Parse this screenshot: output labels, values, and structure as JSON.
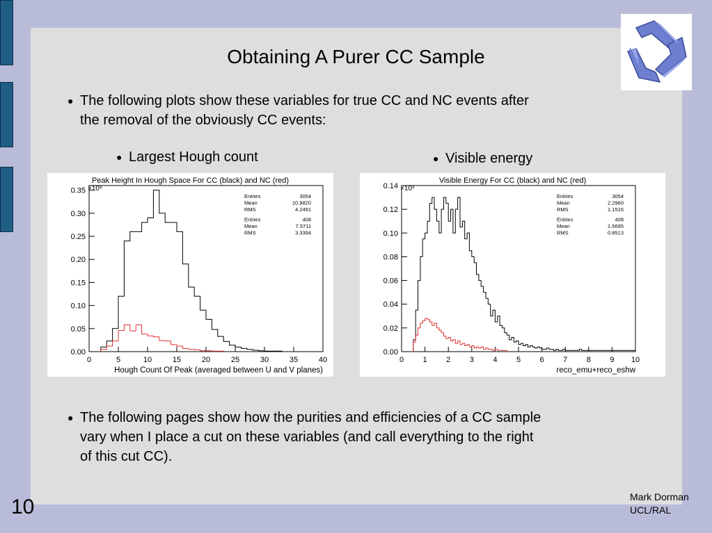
{
  "slide": {
    "title": "Obtaining A Purer CC Sample",
    "bullet1": [
      "The following plots show these variables for true CC and NC events after",
      "the removal of the obviously CC events:"
    ],
    "sub_left": "Largest Hough count",
    "sub_right": "Visible energy",
    "bullet2": [
      "The following pages show how the purities and efficiencies of a CC sample",
      "vary when I place a cut on these variables (and call everything to the right",
      "of this cut CC)."
    ],
    "slide_number": "10",
    "author": "Mark Dorman",
    "affiliation": "UCL/RAL"
  },
  "colors": {
    "cc": "#000000",
    "nc": "#e03030",
    "side_tab": "#1f5d85"
  },
  "logo_icon": "blue-triskelion-logo-icon",
  "chart_data": [
    {
      "type": "histogram",
      "title": "Peak Height In Hough Space For CC (black) and NC (red)",
      "xlabel": "Hough Count Of Peak (averaged between U and V planes)",
      "ylabel": "",
      "multiplier": "×10⁶",
      "xlim": [
        0,
        40
      ],
      "ylim": [
        0,
        0.36
      ],
      "xticks": [
        "0",
        "5",
        "10",
        "15",
        "20",
        "25",
        "30",
        "35",
        "40"
      ],
      "yticks": [
        "0.00",
        "0.05",
        "0.10",
        "0.15",
        "0.20",
        "0.25",
        "0.30",
        "0.35"
      ],
      "stats": [
        {
          "label": "Entries",
          "value": "3054"
        },
        {
          "label": "Mean",
          "value": "10.9820"
        },
        {
          "label": "RMS",
          "value": "4.2491"
        },
        {
          "label": "Entries",
          "value": "408"
        },
        {
          "label": "Mean",
          "value": "7.5711"
        },
        {
          "label": "RMS",
          "value": "3.3394"
        }
      ],
      "series": [
        {
          "name": "CC",
          "color": "#000000",
          "bin_width": 1,
          "x_start": 2,
          "values": [
            0.01,
            0.023,
            0.05,
            0.12,
            0.24,
            0.26,
            0.26,
            0.28,
            0.29,
            0.35,
            0.3,
            0.28,
            0.28,
            0.26,
            0.19,
            0.14,
            0.12,
            0.09,
            0.07,
            0.048,
            0.033,
            0.022,
            0.014,
            0.01,
            0.007,
            0.005,
            0.003,
            0.002,
            0.001,
            0.001,
            0.001
          ]
        },
        {
          "name": "NC",
          "color": "#e03030",
          "bin_width": 1,
          "x_start": 2,
          "values": [
            0.005,
            0.012,
            0.023,
            0.046,
            0.058,
            0.045,
            0.058,
            0.038,
            0.034,
            0.032,
            0.024,
            0.023,
            0.015,
            0.012,
            0.007,
            0.005,
            0.004,
            0.002,
            0.002,
            0.001,
            0.001
          ]
        }
      ]
    },
    {
      "type": "histogram",
      "title": "Visible Energy For CC (black) and NC (red)",
      "xlabel": "reco_emu+reco_eshw",
      "ylabel": "",
      "multiplier": "×10³",
      "xlim": [
        0,
        10
      ],
      "ylim": [
        0,
        0.14
      ],
      "xticks": [
        "0",
        "1",
        "2",
        "3",
        "4",
        "5",
        "6",
        "7",
        "8",
        "9",
        "10"
      ],
      "yticks": [
        "0.00",
        "0.02",
        "0.04",
        "0.06",
        "0.08",
        "0.10",
        "0.12",
        "0.14"
      ],
      "stats": [
        {
          "label": "Entries",
          "value": "3054"
        },
        {
          "label": "Mean",
          "value": "2.2960"
        },
        {
          "label": "RMS",
          "value": "1.1516"
        },
        {
          "label": "Entries",
          "value": "408"
        },
        {
          "label": "Mean",
          "value": "1.5695"
        },
        {
          "label": "RMS",
          "value": "0.8513"
        }
      ],
      "series": [
        {
          "name": "CC",
          "color": "#000000",
          "bin_width": 0.1,
          "x_start": 0.5,
          "values": [
            0.01,
            0.035,
            0.06,
            0.08,
            0.095,
            0.1,
            0.11,
            0.125,
            0.13,
            0.12,
            0.11,
            0.1,
            0.12,
            0.13,
            0.125,
            0.11,
            0.12,
            0.1,
            0.12,
            0.13,
            0.105,
            0.11,
            0.095,
            0.1,
            0.085,
            0.08,
            0.075,
            0.065,
            0.06,
            0.055,
            0.05,
            0.045,
            0.04,
            0.03,
            0.035,
            0.025,
            0.03,
            0.022,
            0.02,
            0.016,
            0.014,
            0.01,
            0.012,
            0.008,
            0.009,
            0.006,
            0.007,
            0.005,
            0.006,
            0.004,
            0.005,
            0.004,
            0.003,
            0.004,
            0.003,
            0.002,
            0.002,
            0.003,
            0.002,
            0.002,
            0.001,
            0.002,
            0.001,
            0.001,
            0.002,
            0.001,
            0.001,
            0.001,
            0.001,
            0.001,
            0.001,
            0.002,
            0.001,
            0.001,
            0.001,
            0.001,
            0.001,
            0.001,
            0.001,
            0.001,
            0.001,
            0.001,
            0.001,
            0.001,
            0.001,
            0.001,
            0.001,
            0.001,
            0.001,
            0.001,
            0.001,
            0.001,
            0.001,
            0.001,
            0.001
          ]
        },
        {
          "name": "NC",
          "color": "#e03030",
          "bin_width": 0.1,
          "x_start": 0.5,
          "values": [
            0.008,
            0.014,
            0.02,
            0.024,
            0.026,
            0.028,
            0.027,
            0.025,
            0.022,
            0.024,
            0.02,
            0.018,
            0.016,
            0.013,
            0.011,
            0.012,
            0.009,
            0.01,
            0.007,
            0.009,
            0.006,
            0.007,
            0.005,
            0.006,
            0.004,
            0.005,
            0.003,
            0.004,
            0.003,
            0.004,
            0.002,
            0.003,
            0.002,
            0.002,
            0.001,
            0.002,
            0.001,
            0.001,
            0.001,
            0.001
          ]
        }
      ]
    }
  ]
}
